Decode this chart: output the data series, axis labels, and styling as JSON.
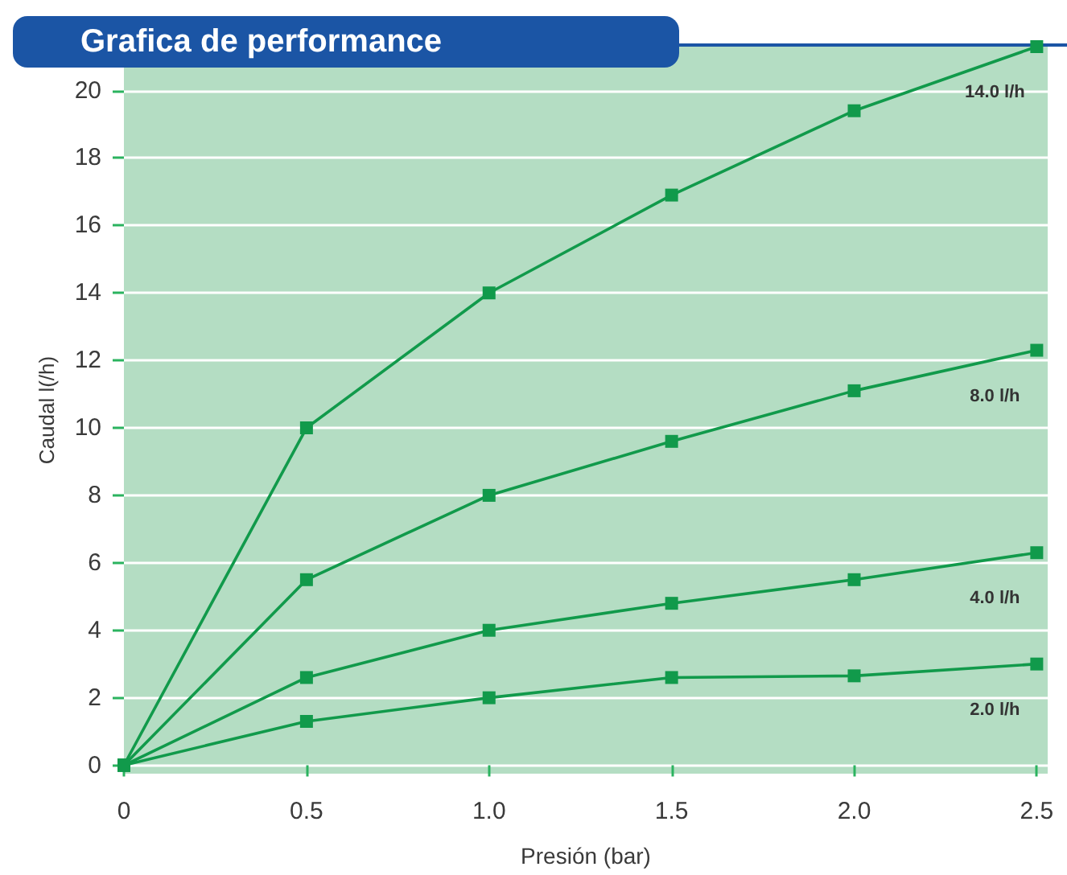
{
  "chart_data": {
    "type": "line",
    "title": "Grafica de performance",
    "xlabel": "Presión (bar)",
    "ylabel": "Caudal l(/h)",
    "x": [
      0,
      0.5,
      1.0,
      1.5,
      2.0,
      2.5
    ],
    "series": [
      {
        "name": "14.0 l/h",
        "color": "#119a4b",
        "values": [
          0,
          10,
          14,
          16.9,
          19.4,
          21.3
        ]
      },
      {
        "name": "8.0 l/h",
        "color": "#119a4b",
        "values": [
          0,
          5.5,
          8.0,
          9.6,
          11.1,
          12.3
        ]
      },
      {
        "name": "4.0 l/h",
        "color": "#119a4b",
        "values": [
          0,
          2.6,
          4.0,
          4.8,
          5.5,
          6.3
        ]
      },
      {
        "name": "2.0 l/h",
        "color": "#119a4b",
        "values": [
          0,
          1.3,
          2.0,
          2.6,
          2.65,
          3.0
        ]
      }
    ],
    "xlim": [
      0,
      2.53
    ],
    "ylim": [
      -0.25,
      21.3
    ],
    "xticks": [
      0,
      0.5,
      {
        "value": 1,
        "label": "1.0"
      },
      1.5,
      {
        "value": 2,
        "label": "2.0"
      },
      2.5
    ],
    "yticks": [
      0,
      2,
      4,
      6,
      8,
      10,
      12,
      14,
      16,
      18,
      20
    ],
    "grid": "y",
    "legend": false,
    "marker": "square",
    "line_style": "solid"
  }
}
